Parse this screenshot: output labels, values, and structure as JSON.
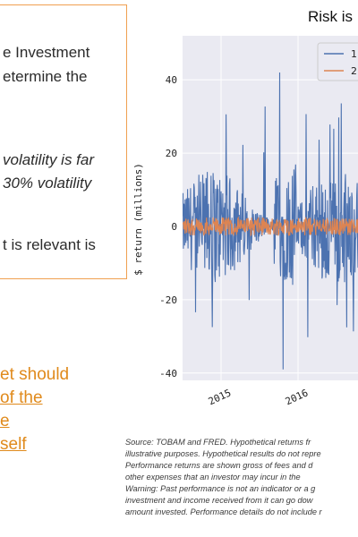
{
  "callout": {
    "lines": [
      "e Investment",
      "etermine the",
      "volatility is far",
      "30% volatility",
      "t is relevant is"
    ]
  },
  "highlight": {
    "lines": [
      "et should",
      " of the",
      "e",
      "self"
    ]
  },
  "chart_data": {
    "type": "line",
    "title": "Risk is",
    "xlabel": "",
    "ylabel": "$ return (millions)",
    "ylim": [
      -42,
      52
    ],
    "yticks": [
      -40,
      -20,
      0,
      20,
      40
    ],
    "xticks": [
      "2015",
      "2016"
    ],
    "grid": true,
    "legend_placement": "top-right",
    "series": [
      {
        "name": "1",
        "color": "#4c72b0"
      },
      {
        "name": "2",
        "color": "#dd8452"
      }
    ]
  },
  "footnote": {
    "lines": [
      "Source: TOBAM and FRED. Hypothetical returns fr",
      "illustrative purposes. Hypothetical results do not repre",
      "Performance returns are shown gross of fees and d",
      "other expenses that an investor may incur in the",
      "Warning: Past performance is not an indicator or a g",
      "investment and income received from it can go dow",
      "amount invested. Performance details do not include r"
    ]
  }
}
